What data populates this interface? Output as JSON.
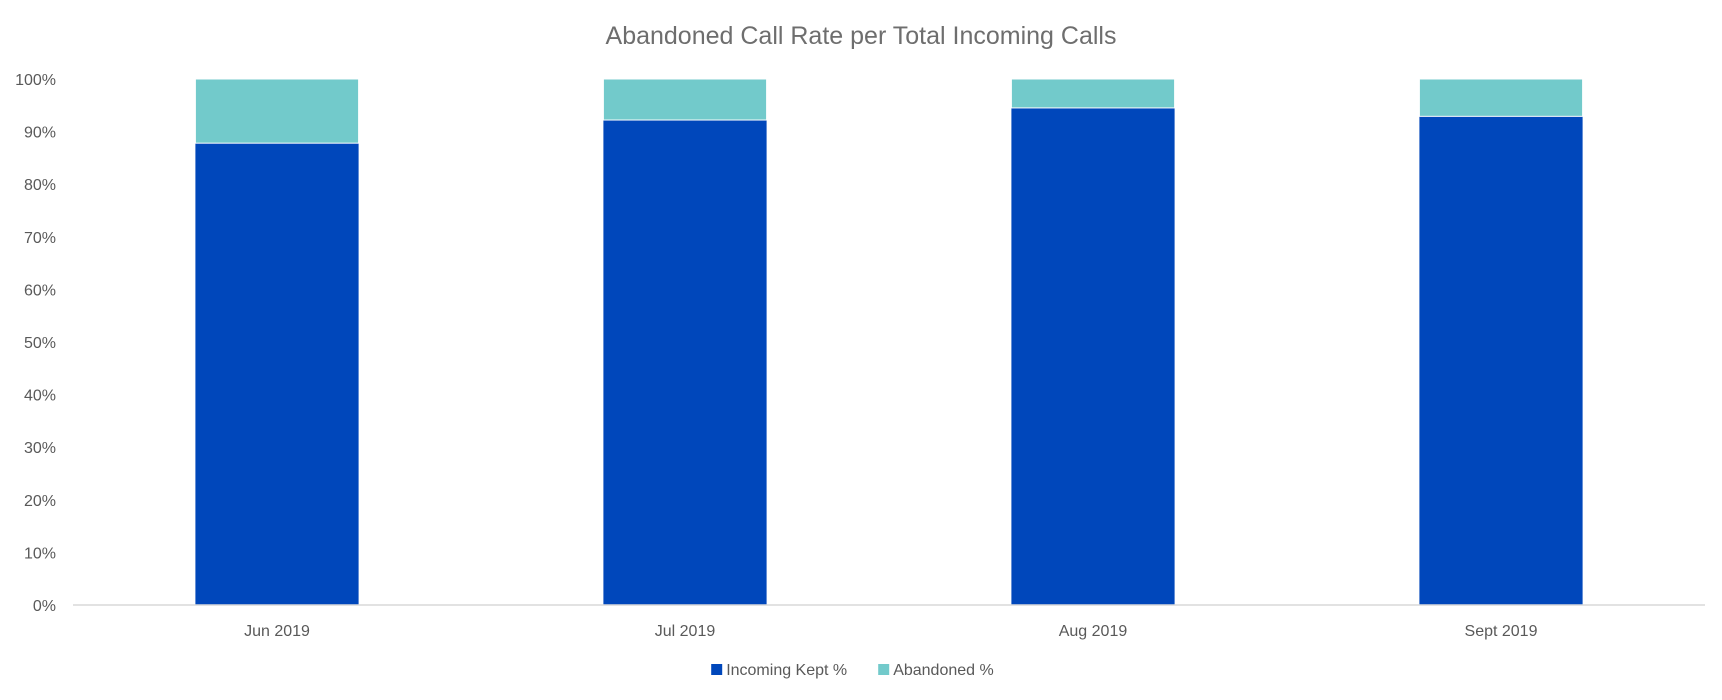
{
  "chart_data": {
    "type": "bar",
    "stacked": true,
    "title": "Abandoned Call Rate per Total Incoming Calls",
    "categories": [
      "Jun 2019",
      "Jul 2019",
      "Aug 2019",
      "Sept 2019"
    ],
    "series": [
      {
        "name": "Incoming Kept %",
        "color": "#0047BB",
        "values": [
          87.8,
          92.2,
          94.5,
          92.9
        ]
      },
      {
        "name": "Abandoned %",
        "color": "#72CACB",
        "values": [
          12.2,
          7.8,
          5.5,
          7.1
        ]
      }
    ],
    "ylim": [
      0,
      100
    ],
    "yticks": [
      "0%",
      "10%",
      "20%",
      "30%",
      "40%",
      "50%",
      "60%",
      "70%",
      "80%",
      "90%",
      "100%"
    ],
    "grid": false,
    "legend_position": "bottom"
  }
}
